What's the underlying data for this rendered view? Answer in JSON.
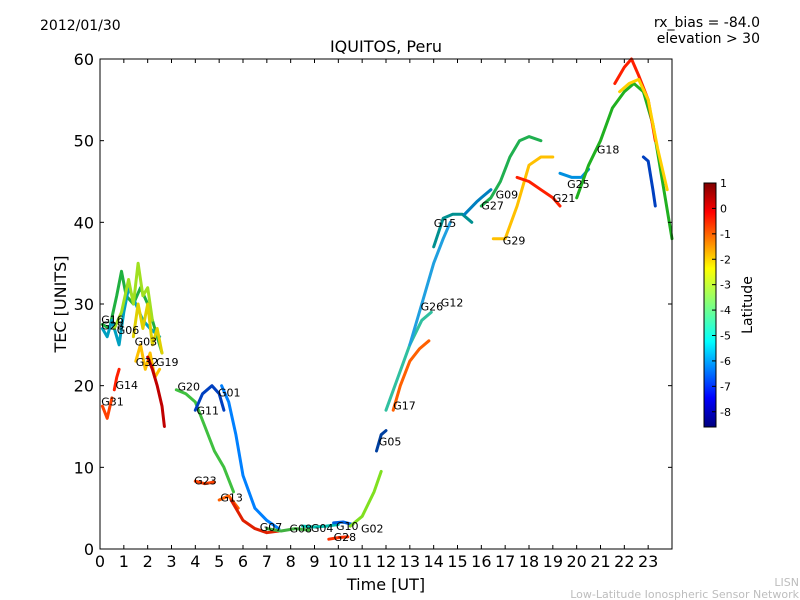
{
  "header": {
    "date": "2012/01/30",
    "rx_bias": "rx_bias = -84.0",
    "elevation": "elevation > 30"
  },
  "footer": {
    "line1": "LISN",
    "line2": "Low-Latitude Ionospheric Sensor Network"
  },
  "chart_data": {
    "type": "line",
    "title": "IQUITOS, Peru",
    "xlabel": "Time [UT]",
    "ylabel": "TEC [UNITS]",
    "xlim": [
      0,
      24
    ],
    "ylim": [
      0,
      60
    ],
    "xticks": [
      0,
      1,
      2,
      3,
      4,
      5,
      6,
      7,
      8,
      9,
      10,
      11,
      12,
      13,
      14,
      15,
      16,
      17,
      18,
      19,
      20,
      21,
      22,
      23
    ],
    "yticks": [
      0,
      10,
      20,
      30,
      40,
      50,
      60
    ],
    "grid": false,
    "colorbar": {
      "label": "Latitude",
      "range": [
        -8.6,
        1.0
      ],
      "ticks": [
        1,
        0,
        -1,
        -2,
        -3,
        -4,
        -5,
        -6,
        -7,
        -8
      ],
      "colormap": [
        "#00007f",
        "#0000ff",
        "#007fff",
        "#00ffff",
        "#7fff7f",
        "#ffff00",
        "#ff7f00",
        "#ff0000",
        "#7f0000"
      ]
    },
    "series": [
      {
        "name": "G31",
        "color": "#ff4000",
        "points": [
          [
            0.1,
            17.5
          ],
          [
            0.3,
            16
          ],
          [
            0.5,
            18.5
          ]
        ]
      },
      {
        "name": "G14",
        "color": "#ff2000",
        "points": [
          [
            0.6,
            19.5
          ],
          [
            0.7,
            21
          ],
          [
            0.8,
            22
          ]
        ]
      },
      {
        "name": "G16",
        "color": "#20b040",
        "points": [
          [
            0.1,
            27.5
          ],
          [
            0.4,
            27
          ],
          [
            0.7,
            31
          ],
          [
            0.9,
            34
          ],
          [
            1.1,
            31
          ],
          [
            1.4,
            30
          ],
          [
            1.7,
            32
          ],
          [
            2.0,
            30
          ],
          [
            2.3,
            27
          ],
          [
            2.6,
            24
          ]
        ]
      },
      {
        "name": "G28",
        "color": "#00a0c0",
        "points": [
          [
            0.1,
            27
          ],
          [
            0.3,
            26
          ],
          [
            0.5,
            28
          ],
          [
            0.8,
            25
          ],
          [
            1.0,
            29
          ],
          [
            1.2,
            32
          ],
          [
            1.5,
            30
          ],
          [
            1.8,
            28
          ],
          [
            2.1,
            27
          ],
          [
            2.5,
            26
          ]
        ]
      },
      {
        "name": "G06",
        "color": "#a0e020",
        "points": [
          [
            0.6,
            27
          ],
          [
            0.9,
            29
          ],
          [
            1.2,
            33
          ],
          [
            1.4,
            30
          ],
          [
            1.6,
            35
          ],
          [
            1.8,
            31
          ],
          [
            2.0,
            32
          ],
          [
            2.2,
            28
          ]
        ]
      },
      {
        "name": "G03",
        "color": "#e0d000",
        "points": [
          [
            1.4,
            26
          ],
          [
            1.6,
            30
          ],
          [
            1.8,
            27
          ],
          [
            2.0,
            30
          ],
          [
            2.2,
            25
          ],
          [
            2.4,
            27
          ],
          [
            2.6,
            24
          ]
        ]
      },
      {
        "name": "G32",
        "color": "#ffc000",
        "points": [
          [
            1.5,
            23
          ],
          [
            1.7,
            25
          ],
          [
            1.9,
            22
          ],
          [
            2.1,
            24
          ],
          [
            2.3,
            21
          ],
          [
            2.5,
            22
          ]
        ]
      },
      {
        "name": "G19",
        "color": "#c00000",
        "points": [
          [
            2.0,
            23.5
          ],
          [
            2.2,
            22
          ],
          [
            2.4,
            20
          ],
          [
            2.6,
            17.5
          ],
          [
            2.7,
            15
          ]
        ]
      },
      {
        "name": "G20",
        "color": "#40c040",
        "points": [
          [
            3.2,
            19.5
          ],
          [
            3.6,
            19
          ],
          [
            4.0,
            18
          ],
          [
            4.4,
            15
          ],
          [
            4.8,
            12
          ],
          [
            5.2,
            10
          ],
          [
            5.6,
            7
          ]
        ]
      },
      {
        "name": "G11",
        "color": "#0040c0",
        "points": [
          [
            4.0,
            17
          ],
          [
            4.3,
            19
          ],
          [
            4.7,
            20
          ],
          [
            5.0,
            19
          ],
          [
            5.2,
            17
          ]
        ]
      },
      {
        "name": "G01",
        "color": "#0080ff",
        "points": [
          [
            5.1,
            20
          ],
          [
            5.4,
            18
          ],
          [
            5.7,
            14
          ],
          [
            6.0,
            9
          ],
          [
            6.5,
            5
          ],
          [
            7.0,
            3.5
          ],
          [
            7.5,
            2.5
          ]
        ]
      },
      {
        "name": "G23",
        "color": "#ff4000",
        "points": [
          [
            4.0,
            8.3
          ],
          [
            4.4,
            8
          ],
          [
            4.8,
            8.2
          ]
        ]
      },
      {
        "name": "G13",
        "color": "#ff6000",
        "points": [
          [
            5.0,
            6
          ],
          [
            5.4,
            6.5
          ],
          [
            5.8,
            5
          ]
        ]
      },
      {
        "name": "G07",
        "color": "#e02000",
        "points": [
          [
            5.5,
            6
          ],
          [
            6.0,
            3.5
          ],
          [
            6.5,
            2.5
          ],
          [
            7.0,
            2
          ],
          [
            7.5,
            2.2
          ]
        ]
      },
      {
        "name": "G08",
        "color": "#40b040",
        "points": [
          [
            7.0,
            2.5
          ],
          [
            7.6,
            2.2
          ],
          [
            8.2,
            2.5
          ],
          [
            8.8,
            2.3
          ]
        ]
      },
      {
        "name": "G04",
        "color": "#00c0b0",
        "points": [
          [
            8.5,
            2.8
          ],
          [
            9.0,
            2.7
          ],
          [
            9.5,
            2.8
          ],
          [
            10.0,
            3.0
          ]
        ]
      },
      {
        "name": "G10",
        "color": "#0060e0",
        "points": [
          [
            9.8,
            3.2
          ],
          [
            10.2,
            3.3
          ],
          [
            10.6,
            3.0
          ]
        ]
      },
      {
        "name": "G28",
        "color": "#ff3000",
        "points": [
          [
            9.6,
            1.2
          ],
          [
            10.0,
            1.4
          ],
          [
            10.4,
            1.5
          ]
        ]
      },
      {
        "name": "G02",
        "color": "#80e020",
        "points": [
          [
            10.5,
            2.8
          ],
          [
            11.0,
            4
          ],
          [
            11.5,
            7
          ],
          [
            11.8,
            9.5
          ]
        ]
      },
      {
        "name": "G05",
        "color": "#0040a0",
        "points": [
          [
            11.6,
            12
          ],
          [
            11.8,
            14
          ],
          [
            12.0,
            14.5
          ]
        ]
      },
      {
        "name": "G17",
        "color": "#ff6000",
        "points": [
          [
            12.3,
            17
          ],
          [
            12.6,
            20
          ],
          [
            13.0,
            23
          ],
          [
            13.4,
            24.5
          ],
          [
            13.8,
            25.5
          ]
        ]
      },
      {
        "name": "G26",
        "color": "#30c0a0",
        "points": [
          [
            12.0,
            17
          ],
          [
            12.5,
            21
          ],
          [
            13.0,
            25
          ],
          [
            13.5,
            28
          ],
          [
            13.9,
            29
          ]
        ]
      },
      {
        "name": "G12",
        "color": "#20a0e0",
        "points": [
          [
            13.0,
            25
          ],
          [
            13.5,
            30
          ],
          [
            14.0,
            35
          ],
          [
            14.4,
            38
          ],
          [
            14.7,
            40
          ]
        ]
      },
      {
        "name": "G15",
        "color": "#009090",
        "points": [
          [
            14.0,
            37
          ],
          [
            14.4,
            40.5
          ],
          [
            14.8,
            41
          ],
          [
            15.2,
            41
          ],
          [
            15.6,
            40
          ]
        ]
      },
      {
        "name": "G27",
        "color": "#0080c0",
        "points": [
          [
            15.3,
            41
          ],
          [
            15.8,
            42.5
          ],
          [
            16.0,
            43
          ],
          [
            16.4,
            44
          ]
        ]
      },
      {
        "name": "G09",
        "color": "#20b050",
        "points": [
          [
            16.0,
            42
          ],
          [
            16.4,
            43
          ],
          [
            16.8,
            45
          ],
          [
            17.2,
            48
          ],
          [
            17.6,
            50
          ],
          [
            18.0,
            50.5
          ],
          [
            18.5,
            50
          ]
        ]
      },
      {
        "name": "G29",
        "color": "#ffc000",
        "points": [
          [
            16.5,
            38
          ],
          [
            17.0,
            38
          ],
          [
            17.5,
            42
          ],
          [
            18.0,
            47
          ],
          [
            18.5,
            48
          ],
          [
            19.0,
            48
          ]
        ]
      },
      {
        "name": "G21",
        "color": "#ff2000",
        "points": [
          [
            17.5,
            45.5
          ],
          [
            18.0,
            45
          ],
          [
            18.5,
            44
          ],
          [
            19.0,
            43
          ],
          [
            19.3,
            42
          ]
        ]
      },
      {
        "name": "G25",
        "color": "#0090e0",
        "points": [
          [
            19.3,
            46
          ],
          [
            19.8,
            45.5
          ],
          [
            20.2,
            45.5
          ],
          [
            20.5,
            46.5
          ]
        ]
      },
      {
        "name": "G18",
        "color": "#20b020",
        "points": [
          [
            20.0,
            43
          ],
          [
            20.5,
            47
          ],
          [
            21.0,
            50
          ],
          [
            21.5,
            54
          ],
          [
            22.0,
            56
          ],
          [
            22.4,
            57
          ],
          [
            22.8,
            56
          ],
          [
            23.2,
            52
          ],
          [
            23.6,
            45
          ],
          [
            24.0,
            38
          ]
        ]
      },
      {
        "name": "G18",
        "color": "#ff2000",
        "points": [
          [
            21.6,
            57
          ],
          [
            22.0,
            59
          ],
          [
            22.3,
            60
          ],
          [
            22.6,
            58
          ],
          [
            23.0,
            55
          ],
          [
            23.3,
            50
          ]
        ]
      },
      {
        "name": "G18",
        "color": "#ffd000",
        "points": [
          [
            21.8,
            56
          ],
          [
            22.2,
            57
          ],
          [
            22.6,
            57.5
          ],
          [
            23.0,
            55
          ],
          [
            23.4,
            49
          ],
          [
            23.8,
            44
          ]
        ]
      },
      {
        "name": "G18",
        "color": "#0040c0",
        "points": [
          [
            22.8,
            48
          ],
          [
            23.0,
            47.5
          ],
          [
            23.2,
            44
          ],
          [
            23.3,
            42
          ]
        ]
      }
    ],
    "labels": [
      {
        "text": "G31",
        "x": 0.05,
        "y": 17.6
      },
      {
        "text": "G14",
        "x": 0.65,
        "y": 19.6
      },
      {
        "text": "G16",
        "x": 0.05,
        "y": 27.6
      },
      {
        "text": "G28",
        "x": 0.05,
        "y": 26.9
      },
      {
        "text": "G06",
        "x": 0.7,
        "y": 26.3
      },
      {
        "text": "G03",
        "x": 1.45,
        "y": 24.9
      },
      {
        "text": "G32",
        "x": 1.5,
        "y": 22.4
      },
      {
        "text": "G19",
        "x": 2.35,
        "y": 22.4
      },
      {
        "text": "G20",
        "x": 3.25,
        "y": 19.4
      },
      {
        "text": "G01",
        "x": 4.95,
        "y": 18.7
      },
      {
        "text": "G11",
        "x": 4.05,
        "y": 16.5
      },
      {
        "text": "G23",
        "x": 3.95,
        "y": 7.9
      },
      {
        "text": "G13",
        "x": 5.05,
        "y": 5.8
      },
      {
        "text": "G07",
        "x": 6.7,
        "y": 2.2
      },
      {
        "text": "G08",
        "x": 7.95,
        "y": 2.0
      },
      {
        "text": "G04",
        "x": 8.85,
        "y": 2.1
      },
      {
        "text": "G10",
        "x": 9.9,
        "y": 2.3
      },
      {
        "text": "G28",
        "x": 9.8,
        "y": 1.0
      },
      {
        "text": "G02",
        "x": 10.95,
        "y": 2.0
      },
      {
        "text": "G05",
        "x": 11.7,
        "y": 12.7
      },
      {
        "text": "G17",
        "x": 12.3,
        "y": 17.1
      },
      {
        "text": "G26",
        "x": 13.45,
        "y": 29.2
      },
      {
        "text": "G12",
        "x": 14.3,
        "y": 29.7
      },
      {
        "text": "G15",
        "x": 14.0,
        "y": 39.4
      },
      {
        "text": "G27",
        "x": 16.0,
        "y": 41.6
      },
      {
        "text": "G09",
        "x": 16.6,
        "y": 42.9
      },
      {
        "text": "G29",
        "x": 16.9,
        "y": 37.3
      },
      {
        "text": "G21",
        "x": 19.0,
        "y": 42.5
      },
      {
        "text": "G25",
        "x": 19.6,
        "y": 44.2
      },
      {
        "text": "G18",
        "x": 20.85,
        "y": 48.4
      }
    ]
  }
}
